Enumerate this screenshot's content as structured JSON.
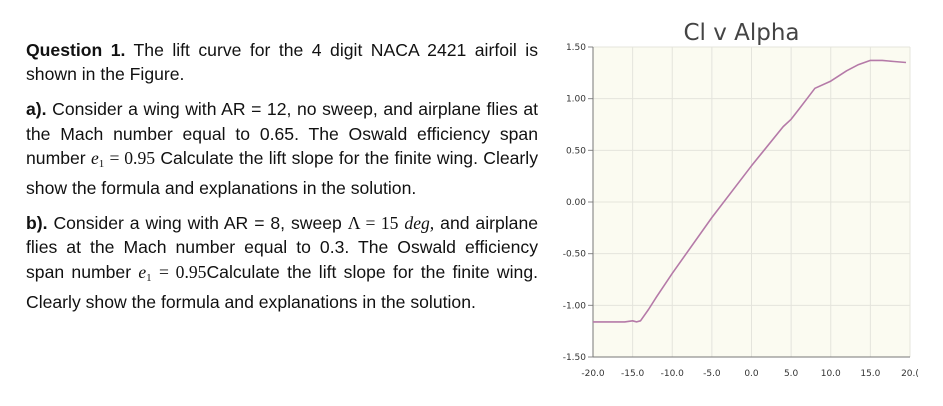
{
  "question": {
    "intro_label": "Question 1.",
    "intro_text": "The lift curve for the 4 digit NACA 2421 airfoil is shown in the Figure."
  },
  "part_a": {
    "label": "a).",
    "text1": "Consider a wing with AR = 12, no sweep, and airplane flies at the Mach number equal to 0.65. The Oswald efficiency span number",
    "math_e": "e",
    "math_sub": "1",
    "math_eq": "= 0.95",
    "text2": "Calculate the lift slope for the finite wing. Clearly show the formula and explanations in the solution."
  },
  "part_b": {
    "label": "b).",
    "text1": "Consider a wing with AR = 8, sweep",
    "math_sweep": "Λ = 15",
    "math_deg": "deg,",
    "text2": "and airplane flies at the Mach number equal to 0.3. The Oswald efficiency span number",
    "math_e": "e",
    "math_sub": "1",
    "math_eq": "= 0.95",
    "text3": "Calculate the lift slope for the finite wing. Clearly show the formula and explanations in the solution."
  },
  "chart_data": {
    "type": "line",
    "title": "Cl v Alpha",
    "xlim": [
      -20.0,
      20.0
    ],
    "ylim": [
      -1.5,
      1.5
    ],
    "x_ticks": [
      "-20.0",
      "-15.0",
      "-10.0",
      "-5.0",
      "0.0",
      "5.0",
      "10.0",
      "15.0",
      "20.("
    ],
    "y_ticks": [
      "1.50",
      "1.00",
      "0.50",
      "0.00",
      "-0.50",
      "-1.00",
      "-1.50"
    ],
    "grid": true,
    "line_color": "#b57aa8",
    "series": [
      {
        "x": [
          -20.0,
          -18.0,
          -16.0,
          -15.0,
          -14.5,
          -14.0,
          -13.0,
          -12.0,
          -10.0,
          -5.0,
          0.0,
          4.0,
          5.0,
          6.0,
          7.0,
          8.0,
          10.0,
          12.0,
          13.5,
          15.0,
          16.5,
          18.0,
          19.5
        ],
        "y": [
          -1.16,
          -1.16,
          -1.16,
          -1.15,
          -1.16,
          -1.15,
          -1.04,
          -0.92,
          -0.69,
          -0.15,
          0.35,
          0.73,
          0.8,
          0.9,
          1.0,
          1.1,
          1.17,
          1.27,
          1.33,
          1.37,
          1.37,
          1.36,
          1.35
        ]
      }
    ]
  }
}
